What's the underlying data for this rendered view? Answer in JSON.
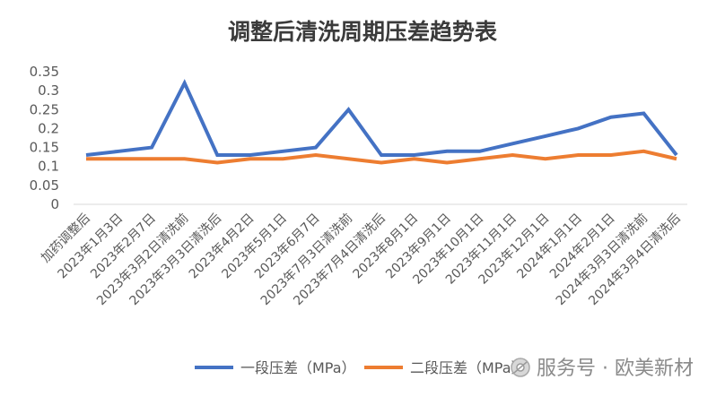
{
  "chart_data": {
    "type": "line",
    "title": "调整后清洗周期压差趋势表",
    "xlabel": "",
    "ylabel": "",
    "ylim": [
      0,
      0.35
    ],
    "yticks": [
      "0.35",
      "0.3",
      "0.25",
      "0.2",
      "0.15",
      "0.1",
      "0.05",
      "0"
    ],
    "categories": [
      "加药调整后",
      "2023年1月3日",
      "2023年2月7日",
      "2023年3月2日清洗前",
      "2023年3月3日清洗后",
      "2023年4月2日",
      "2023年5月1日",
      "2023年6月7日",
      "2023年7月3日清洗前",
      "2023年7月4日清洗后",
      "2023年8月1日",
      "2023年9月1日",
      "2023年10月1日",
      "2023年11月1日",
      "2023年12月1日",
      "2024年1月1日",
      "2024年2月1日",
      "2024年3月3日清洗前",
      "2024年3月4日清洗后"
    ],
    "series": [
      {
        "name": "一段压差（MPa）",
        "color": "#4472C4",
        "values": [
          0.13,
          0.14,
          0.15,
          0.32,
          0.13,
          0.13,
          0.14,
          0.15,
          0.25,
          0.13,
          0.13,
          0.14,
          0.14,
          0.16,
          0.18,
          0.2,
          0.23,
          0.24,
          0.13
        ]
      },
      {
        "name": "二段压差（MPa）",
        "color": "#ED7D31",
        "values": [
          0.12,
          0.12,
          0.12,
          0.12,
          0.11,
          0.12,
          0.12,
          0.13,
          0.12,
          0.11,
          0.12,
          0.11,
          0.12,
          0.13,
          0.12,
          0.13,
          0.13,
          0.14,
          0.12
        ]
      }
    ],
    "grid": false,
    "legend_position": "bottom"
  },
  "watermark": {
    "text": "服务号 · 欧美新材",
    "icon": "wechat-service-icon"
  }
}
